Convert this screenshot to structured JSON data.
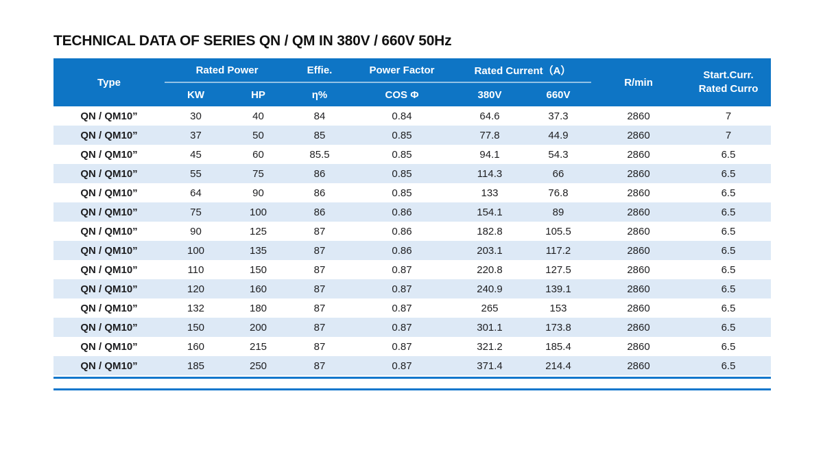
{
  "title": "TECHNICAL DATA OF SERIES QN / QM IN 380V / 660V 50Hz",
  "colors": {
    "header_bg": "#0e75c5",
    "stripe": "#dde9f6",
    "rule": "#1377cc",
    "text": "#1d1d1f"
  },
  "table": {
    "header": {
      "type": "Type",
      "rated_power": "Rated Power",
      "kw": "KW",
      "hp": "HP",
      "effie": "Effie.",
      "eta": "η%",
      "power_factor": "Power Factor",
      "cos_phi": "COS Φ",
      "rated_current": "Rated Current（A）",
      "v380": "380V",
      "v660": "660V",
      "rmin": "R/min",
      "start_curr_line1": "Start.Curr.",
      "start_curr_line2": "Rated Curro"
    },
    "rows": [
      [
        "QN / QM10”",
        "30",
        "40",
        "84",
        "0.84",
        "64.6",
        "37.3",
        "2860",
        "7"
      ],
      [
        "QN / QM10”",
        "37",
        "50",
        "85",
        "0.85",
        "77.8",
        "44.9",
        "2860",
        "7"
      ],
      [
        "QN / QM10”",
        "45",
        "60",
        "85.5",
        "0.85",
        "94.1",
        "54.3",
        "2860",
        "6.5"
      ],
      [
        "QN / QM10”",
        "55",
        "75",
        "86",
        "0.85",
        "114.3",
        "66",
        "2860",
        "6.5"
      ],
      [
        "QN / QM10”",
        "64",
        "90",
        "86",
        "0.85",
        "133",
        "76.8",
        "2860",
        "6.5"
      ],
      [
        "QN / QM10”",
        "75",
        "100",
        "86",
        "0.86",
        "154.1",
        "89",
        "2860",
        "6.5"
      ],
      [
        "QN / QM10”",
        "90",
        "125",
        "87",
        "0.86",
        "182.8",
        "105.5",
        "2860",
        "6.5"
      ],
      [
        "QN / QM10”",
        "100",
        "135",
        "87",
        "0.86",
        "203.1",
        "117.2",
        "2860",
        "6.5"
      ],
      [
        "QN / QM10”",
        "110",
        "150",
        "87",
        "0.87",
        "220.8",
        "127.5",
        "2860",
        "6.5"
      ],
      [
        "QN / QM10”",
        "120",
        "160",
        "87",
        "0.87",
        "240.9",
        "139.1",
        "2860",
        "6.5"
      ],
      [
        "QN / QM10”",
        "132",
        "180",
        "87",
        "0.87",
        "265",
        "153",
        "2860",
        "6.5"
      ],
      [
        "QN / QM10”",
        "150",
        "200",
        "87",
        "0.87",
        "301.1",
        "173.8",
        "2860",
        "6.5"
      ],
      [
        "QN / QM10”",
        "160",
        "215",
        "87",
        "0.87",
        "321.2",
        "185.4",
        "2860",
        "6.5"
      ],
      [
        "QN / QM10”",
        "185",
        "250",
        "87",
        "0.87",
        "371.4",
        "214.4",
        "2860",
        "6.5"
      ]
    ]
  }
}
